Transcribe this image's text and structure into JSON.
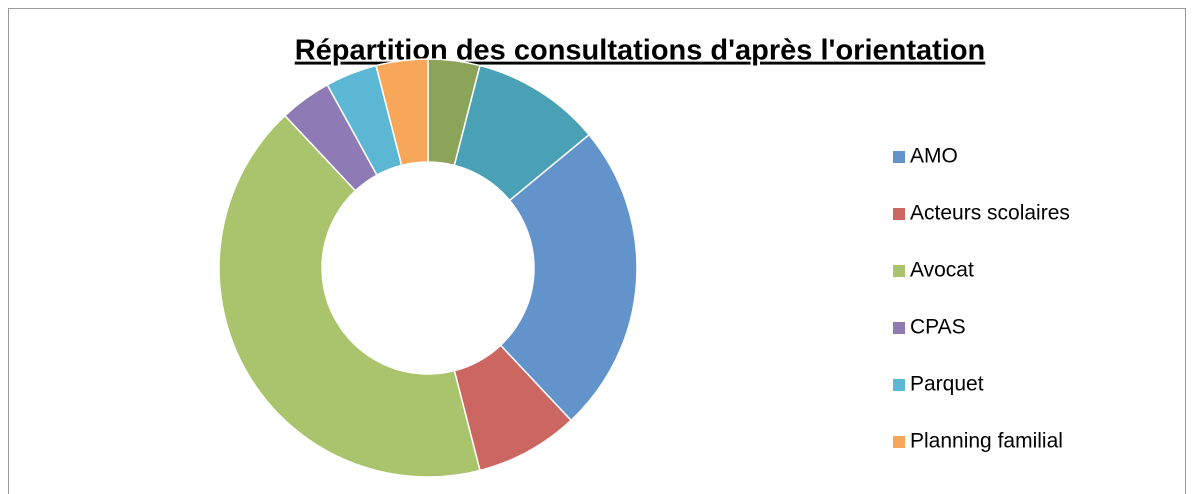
{
  "chart_data": {
    "type": "donut",
    "title": "Répartition des consultations d'après l'orientation",
    "categories": [
      null,
      null,
      "AMO",
      "Acteurs scolaires",
      "Avocat",
      "CPAS",
      "Parquet",
      "Planning familial"
    ],
    "values": [
      4,
      10,
      24,
      8,
      42,
      4,
      4,
      4
    ],
    "colors": [
      "#8ba45a",
      "#4aa1b6",
      "#6294cb",
      "#cc6661",
      "#a9c46c",
      "#8e7bb5",
      "#5bb7d3",
      "#f6a75a"
    ],
    "legend": "right"
  }
}
